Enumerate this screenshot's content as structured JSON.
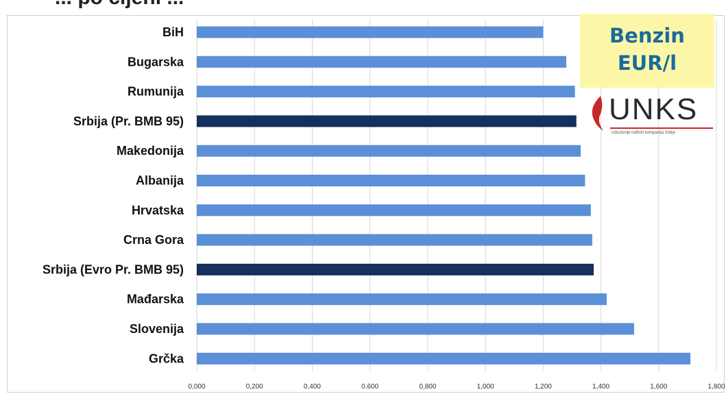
{
  "page": {
    "title_fragment": "... po cijeni ..."
  },
  "badge": {
    "line1": "Benzin",
    "line2": "EUR/l"
  },
  "logo": {
    "name": "UNKS",
    "tagline": "Udruženje naftnih kompanija Srbije",
    "colors": {
      "accent": "#c8282a",
      "text": "#2b2b2b"
    }
  },
  "chart_data": {
    "type": "bar",
    "orientation": "horizontal",
    "title": "",
    "xlabel": "",
    "ylabel": "",
    "xlim": [
      0,
      1.8
    ],
    "grid": true,
    "ticks": [
      "0,000",
      "0,200",
      "0,400",
      "0,600",
      "0,800",
      "1,000",
      "1,200",
      "1,400",
      "1,600",
      "1,800"
    ],
    "categories": [
      "BiH",
      "Bugarska",
      "Rumunija",
      "Srbija (Pr. BMB 95)",
      "Makedonija",
      "Albanija",
      "Hrvatska",
      "Crna Gora",
      "Srbija (Evro Pr. BMB 95)",
      "Mađarska",
      "Slovenija",
      "Grčka"
    ],
    "values": [
      1.2,
      1.28,
      1.31,
      1.315,
      1.33,
      1.345,
      1.365,
      1.37,
      1.375,
      1.42,
      1.515,
      1.71
    ],
    "highlight": [
      "Srbija (Pr. BMB 95)",
      "Srbija (Evro Pr. BMB 95)"
    ],
    "colors": {
      "bar": "#5b8fd8",
      "highlight": "#14305c",
      "grid": "#d6d6d6"
    }
  }
}
